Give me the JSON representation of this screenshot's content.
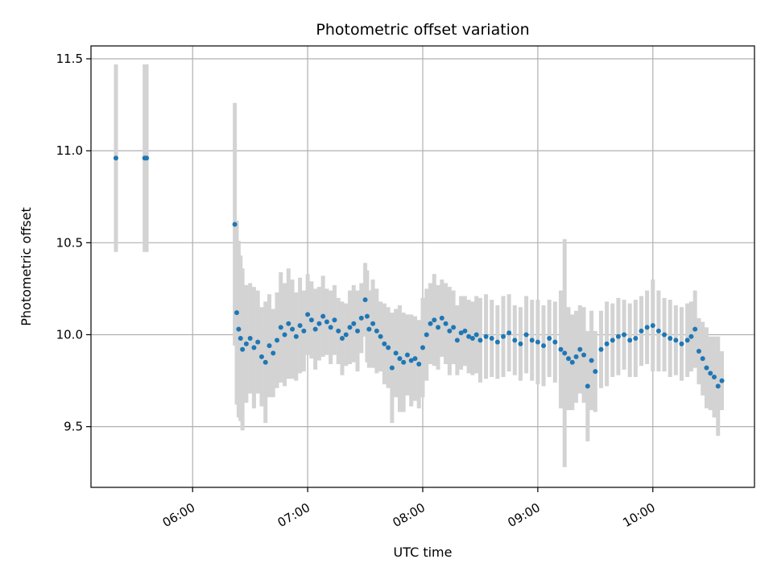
{
  "chart_data": {
    "type": "scatter",
    "title": "Photometric offset variation",
    "xlabel": "UTC time",
    "ylabel": "Photometric offset",
    "x_ticks": [
      "06:00",
      "07:00",
      "08:00",
      "09:00",
      "10:00"
    ],
    "y_ticks": [
      "9.5",
      "10.0",
      "10.5",
      "11.0",
      "11.5"
    ],
    "y_tick_values": [
      9.5,
      10.0,
      10.5,
      11.0,
      11.5
    ],
    "xlim": [
      "05:07",
      "10:53"
    ],
    "ylim": [
      9.17,
      11.57
    ],
    "grid": true,
    "colors": {
      "point": "#1f77b4",
      "errorbar": "#d3d3d3",
      "grid": "#b0b0b0"
    },
    "series": [
      {
        "x": [
          "05:20",
          "05:35",
          "05:36",
          "06:22",
          "06:23",
          "06:24",
          "06:25",
          "06:26",
          "06:28",
          "06:30",
          "06:32",
          "06:34",
          "06:36",
          "06:38",
          "06:40",
          "06:42",
          "06:44",
          "06:46",
          "06:48",
          "06:50",
          "06:52",
          "06:54",
          "06:56",
          "06:58",
          "07:00",
          "07:02",
          "07:04",
          "07:06",
          "07:08",
          "07:10",
          "07:12",
          "07:14",
          "07:16",
          "07:18",
          "07:20",
          "07:22",
          "07:24",
          "07:26",
          "07:28",
          "07:30",
          "07:31",
          "07:32",
          "07:34",
          "07:36",
          "07:38",
          "07:40",
          "07:42",
          "07:44",
          "07:46",
          "07:48",
          "07:50",
          "07:52",
          "07:54",
          "07:56",
          "07:58",
          "08:00",
          "08:02",
          "08:04",
          "08:06",
          "08:08",
          "08:10",
          "08:12",
          "08:14",
          "08:16",
          "08:18",
          "08:20",
          "08:22",
          "08:24",
          "08:26",
          "08:28",
          "08:30",
          "08:33",
          "08:36",
          "08:39",
          "08:42",
          "08:45",
          "08:48",
          "08:51",
          "08:54",
          "08:57",
          "09:00",
          "09:03",
          "09:06",
          "09:09",
          "09:12",
          "09:14",
          "09:16",
          "09:18",
          "09:20",
          "09:22",
          "09:24",
          "09:26",
          "09:28",
          "09:30",
          "09:33",
          "09:36",
          "09:39",
          "09:42",
          "09:45",
          "09:48",
          "09:51",
          "09:54",
          "09:57",
          "10:00",
          "10:03",
          "10:06",
          "10:09",
          "10:12",
          "10:15",
          "10:18",
          "10:20",
          "10:22",
          "10:24",
          "10:26",
          "10:28",
          "10:30",
          "10:32",
          "10:34",
          "10:36"
        ],
        "y": [
          10.96,
          10.96,
          10.96,
          10.6,
          10.12,
          10.03,
          9.98,
          9.92,
          9.95,
          9.98,
          9.93,
          9.96,
          9.88,
          9.85,
          9.94,
          9.9,
          9.97,
          10.04,
          10.0,
          10.06,
          10.03,
          9.99,
          10.05,
          10.02,
          10.11,
          10.08,
          10.03,
          10.06,
          10.1,
          10.07,
          10.04,
          10.08,
          10.02,
          9.98,
          10.0,
          10.04,
          10.06,
          10.02,
          10.09,
          10.19,
          10.1,
          10.03,
          10.06,
          10.02,
          9.99,
          9.95,
          9.93,
          9.82,
          9.9,
          9.87,
          9.85,
          9.89,
          9.86,
          9.87,
          9.84,
          9.93,
          10.0,
          10.06,
          10.08,
          10.04,
          10.09,
          10.06,
          10.02,
          10.04,
          9.97,
          10.01,
          10.02,
          9.99,
          9.98,
          10.0,
          9.97,
          9.99,
          9.98,
          9.96,
          9.99,
          10.01,
          9.97,
          9.95,
          10.0,
          9.97,
          9.96,
          9.94,
          9.98,
          9.96,
          9.92,
          9.9,
          9.87,
          9.85,
          9.88,
          9.92,
          9.89,
          9.72,
          9.86,
          9.8,
          9.92,
          9.95,
          9.97,
          9.99,
          10.0,
          9.97,
          9.98,
          10.02,
          10.04,
          10.05,
          10.02,
          10.0,
          9.98,
          9.97,
          9.95,
          9.97,
          9.99,
          10.03,
          9.91,
          9.87,
          9.82,
          9.79,
          9.77,
          9.72,
          9.75
        ],
        "err": [
          0.51,
          0.51,
          0.51,
          0.66,
          0.5,
          0.48,
          0.45,
          0.44,
          0.32,
          0.3,
          0.33,
          0.28,
          0.27,
          0.33,
          0.28,
          0.24,
          0.26,
          0.3,
          0.28,
          0.3,
          0.27,
          0.24,
          0.26,
          0.22,
          0.22,
          0.21,
          0.22,
          0.2,
          0.22,
          0.18,
          0.2,
          0.19,
          0.18,
          0.2,
          0.17,
          0.2,
          0.21,
          0.22,
          0.19,
          0.2,
          0.25,
          0.21,
          0.24,
          0.23,
          0.19,
          0.22,
          0.22,
          0.3,
          0.24,
          0.29,
          0.27,
          0.22,
          0.25,
          0.23,
          0.24,
          0.27,
          0.25,
          0.22,
          0.25,
          0.23,
          0.21,
          0.22,
          0.24,
          0.2,
          0.19,
          0.2,
          0.19,
          0.2,
          0.2,
          0.21,
          0.23,
          0.23,
          0.21,
          0.2,
          0.22,
          0.21,
          0.19,
          0.2,
          0.21,
          0.22,
          0.23,
          0.22,
          0.21,
          0.22,
          0.32,
          0.62,
          0.28,
          0.26,
          0.25,
          0.24,
          0.26,
          0.3,
          0.27,
          0.22,
          0.21,
          0.23,
          0.2,
          0.21,
          0.19,
          0.2,
          0.21,
          0.19,
          0.2,
          0.25,
          0.22,
          0.2,
          0.21,
          0.19,
          0.2,
          0.2,
          0.19,
          0.21,
          0.18,
          0.2,
          0.22,
          0.2,
          0.22,
          0.27,
          0.16
        ]
      }
    ]
  }
}
